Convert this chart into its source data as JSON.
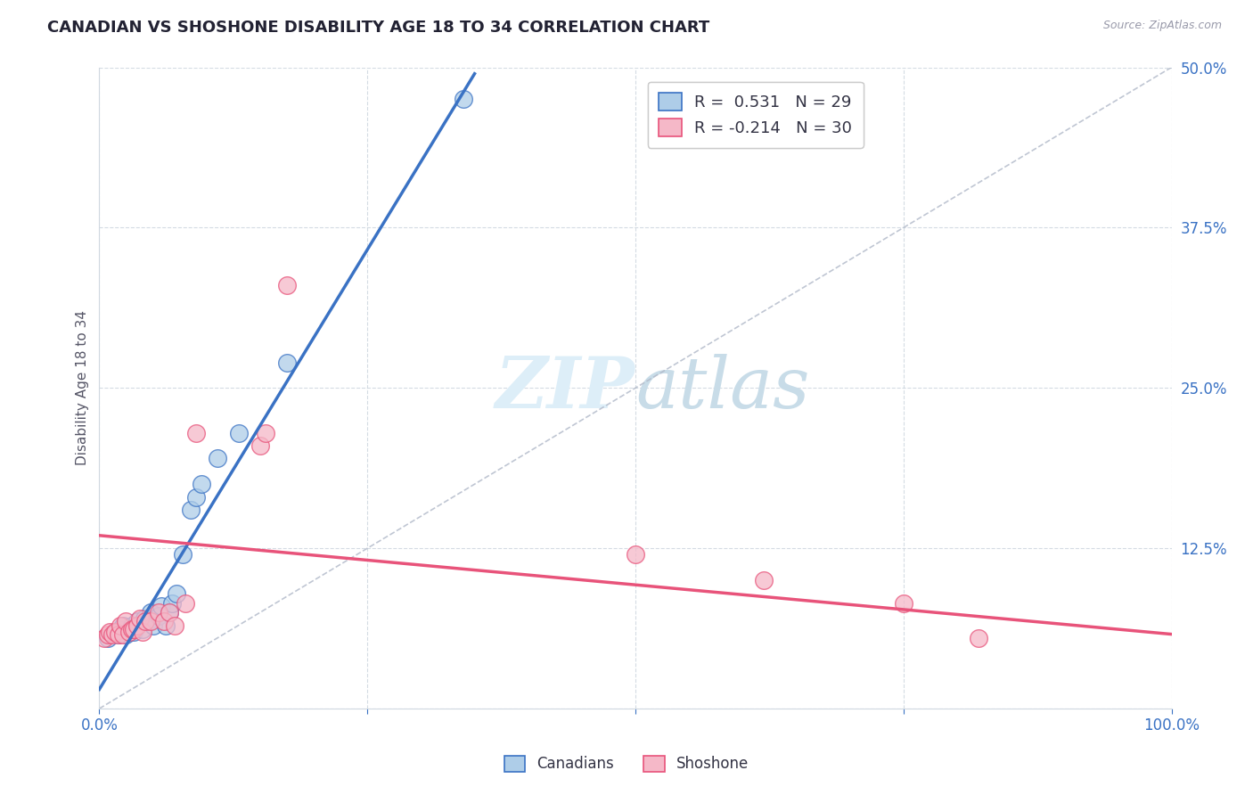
{
  "title": "CANADIAN VS SHOSHONE DISABILITY AGE 18 TO 34 CORRELATION CHART",
  "source_text": "Source: ZipAtlas.com",
  "ylabel": "Disability Age 18 to 34",
  "xlim": [
    0.0,
    1.0
  ],
  "ylim": [
    0.0,
    0.5
  ],
  "xticks": [
    0.0,
    0.25,
    0.5,
    0.75,
    1.0
  ],
  "xticklabels": [
    "0.0%",
    "",
    "",
    "",
    "100.0%"
  ],
  "yticks": [
    0.0,
    0.125,
    0.25,
    0.375,
    0.5
  ],
  "yticklabels": [
    "",
    "12.5%",
    "25.0%",
    "37.5%",
    "50.0%"
  ],
  "canadian_R": 0.531,
  "canadian_N": 29,
  "shoshone_R": -0.214,
  "shoshone_N": 30,
  "canadian_color": "#aecde8",
  "shoshone_color": "#f5b8c8",
  "canadian_line_color": "#3a72c4",
  "shoshone_line_color": "#e8537a",
  "ref_line_color": "#b0b8c8",
  "background_color": "#ffffff",
  "grid_color": "#d0d8e0",
  "watermark_color": "#ddeef8",
  "canadians_x": [
    0.008,
    0.015,
    0.018,
    0.02,
    0.022,
    0.025,
    0.028,
    0.03,
    0.032,
    0.035,
    0.04,
    0.042,
    0.045,
    0.048,
    0.05,
    0.055,
    0.058,
    0.062,
    0.065,
    0.068,
    0.072,
    0.078,
    0.085,
    0.09,
    0.095,
    0.11,
    0.13,
    0.175,
    0.34
  ],
  "canadians_y": [
    0.055,
    0.06,
    0.058,
    0.062,
    0.065,
    0.058,
    0.06,
    0.065,
    0.06,
    0.068,
    0.062,
    0.07,
    0.068,
    0.075,
    0.065,
    0.072,
    0.08,
    0.065,
    0.075,
    0.082,
    0.09,
    0.12,
    0.155,
    0.165,
    0.175,
    0.195,
    0.215,
    0.27,
    0.475
  ],
  "shoshone_x": [
    0.005,
    0.008,
    0.01,
    0.012,
    0.015,
    0.018,
    0.02,
    0.022,
    0.025,
    0.028,
    0.03,
    0.032,
    0.035,
    0.038,
    0.04,
    0.043,
    0.048,
    0.055,
    0.06,
    0.065,
    0.07,
    0.08,
    0.09,
    0.15,
    0.155,
    0.175,
    0.5,
    0.62,
    0.75,
    0.82
  ],
  "shoshone_y": [
    0.055,
    0.058,
    0.06,
    0.058,
    0.06,
    0.058,
    0.065,
    0.058,
    0.068,
    0.06,
    0.062,
    0.062,
    0.065,
    0.07,
    0.06,
    0.068,
    0.068,
    0.075,
    0.068,
    0.075,
    0.065,
    0.082,
    0.215,
    0.205,
    0.215,
    0.33,
    0.12,
    0.1,
    0.082,
    0.055
  ],
  "canadian_line_x": [
    0.0,
    0.35
  ],
  "canadian_line_y": [
    0.015,
    0.495
  ],
  "shoshone_line_x": [
    0.0,
    1.0
  ],
  "shoshone_line_y": [
    0.135,
    0.058
  ]
}
